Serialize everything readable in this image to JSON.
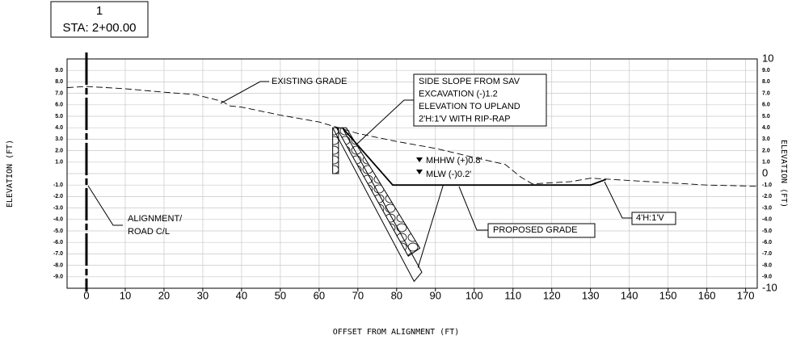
{
  "chart_data": {
    "type": "line",
    "station_number": "1",
    "station": "STA: 2+00.00",
    "xlabel": "OFFSET FROM ALIGNMENT (FT)",
    "ylabel": "ELEVATION (FT)",
    "y2label": "ELEVATION (FT)",
    "xlim": [
      -5,
      173
    ],
    "ylim": [
      -10,
      10
    ],
    "y2lim": [
      -10,
      10
    ],
    "xticks": [
      0,
      10,
      20,
      30,
      40,
      50,
      60,
      70,
      80,
      90,
      100,
      110,
      120,
      130,
      140,
      150,
      160,
      170
    ],
    "yticks": [
      {
        "value": 9,
        "label": "9.0"
      },
      {
        "value": 8,
        "label": "8.0"
      },
      {
        "value": 7,
        "label": "7.0"
      },
      {
        "value": 6,
        "label": "6.0"
      },
      {
        "value": 5,
        "label": "5.0"
      },
      {
        "value": 4,
        "label": "4.0"
      },
      {
        "value": 3,
        "label": "3.0"
      },
      {
        "value": 2,
        "label": "2.0"
      },
      {
        "value": 1,
        "label": "1.0"
      },
      {
        "value": -1,
        "label": "-1.0"
      },
      {
        "value": -2,
        "label": "-2.0"
      },
      {
        "value": -3,
        "label": "-3.0"
      },
      {
        "value": -4,
        "label": "-4.0"
      },
      {
        "value": -5,
        "label": "-5.0"
      },
      {
        "value": -6,
        "label": "-6.0"
      },
      {
        "value": -7,
        "label": "-7.0"
      },
      {
        "value": -8,
        "label": "-8.0"
      },
      {
        "value": -9,
        "label": "-9.0"
      }
    ],
    "y2ticks": [
      10,
      {
        "value": 9,
        "label": "9.0"
      },
      {
        "value": 8,
        "label": "8.0"
      },
      {
        "value": 7,
        "label": "7.0"
      },
      {
        "value": 6,
        "label": "6.0"
      },
      {
        "value": 5,
        "label": "5.0"
      },
      {
        "value": 4,
        "label": "4.0"
      },
      {
        "value": 3,
        "label": "3.0"
      },
      {
        "value": 2,
        "label": "2.0"
      },
      {
        "value": 1,
        "label": "1.0"
      },
      0,
      {
        "value": -1,
        "label": "-1.0"
      },
      {
        "value": -2,
        "label": "-2.0"
      },
      {
        "value": -3,
        "label": "-3.0"
      },
      {
        "value": -4,
        "label": "-4.0"
      },
      {
        "value": -5,
        "label": "-5.0"
      },
      {
        "value": -6,
        "label": "-6.0"
      },
      {
        "value": -7,
        "label": "-7.0"
      },
      {
        "value": -8,
        "label": "-8.0"
      },
      {
        "value": -9,
        "label": "-9.0"
      },
      -10
    ],
    "grid": true,
    "series": [
      {
        "color": "#000000",
        "dashed": true,
        "x": [
          -5,
          0,
          10,
          20,
          28,
          35,
          37,
          40,
          50,
          60,
          65,
          70,
          80,
          90,
          100,
          108,
          112,
          115,
          120,
          125,
          130,
          135,
          140,
          150,
          160,
          173
        ],
        "values": [
          7.5,
          7.6,
          7.4,
          7.1,
          6.9,
          6.3,
          5.9,
          5.8,
          5.1,
          4.5,
          4.0,
          3.5,
          2.8,
          2.2,
          1.4,
          0.8,
          -0.3,
          -0.9,
          -0.8,
          -0.7,
          -0.4,
          -0.5,
          -0.6,
          -0.8,
          -1.0,
          -1.1
        ]
      },
      {
        "color": "#000000",
        "dashed": false,
        "x": [
          66,
          79,
          130,
          134
        ],
        "values": [
          4.0,
          -1.0,
          -1.0,
          -0.5
        ]
      }
    ],
    "annotations": [
      {
        "lines": [
          "EXISTING GRADE"
        ]
      },
      {
        "lines": [
          "SIDE SLOPE FROM SAV",
          "EXCAVATION (-)1.2",
          "ELEVATION TO UPLAND",
          "2'H:1'V WITH RIP-RAP"
        ]
      },
      {
        "lines": [
          "MHHW (+)0.8'"
        ]
      },
      {
        "lines": [
          "MLW (-)0.2'"
        ]
      },
      {
        "lines": [
          "ALIGNMENT/",
          "ROAD C/L"
        ]
      },
      {
        "lines": [
          "PROPOSED GRADE"
        ]
      },
      {
        "lines": [
          "4'H:1'V"
        ]
      }
    ]
  }
}
